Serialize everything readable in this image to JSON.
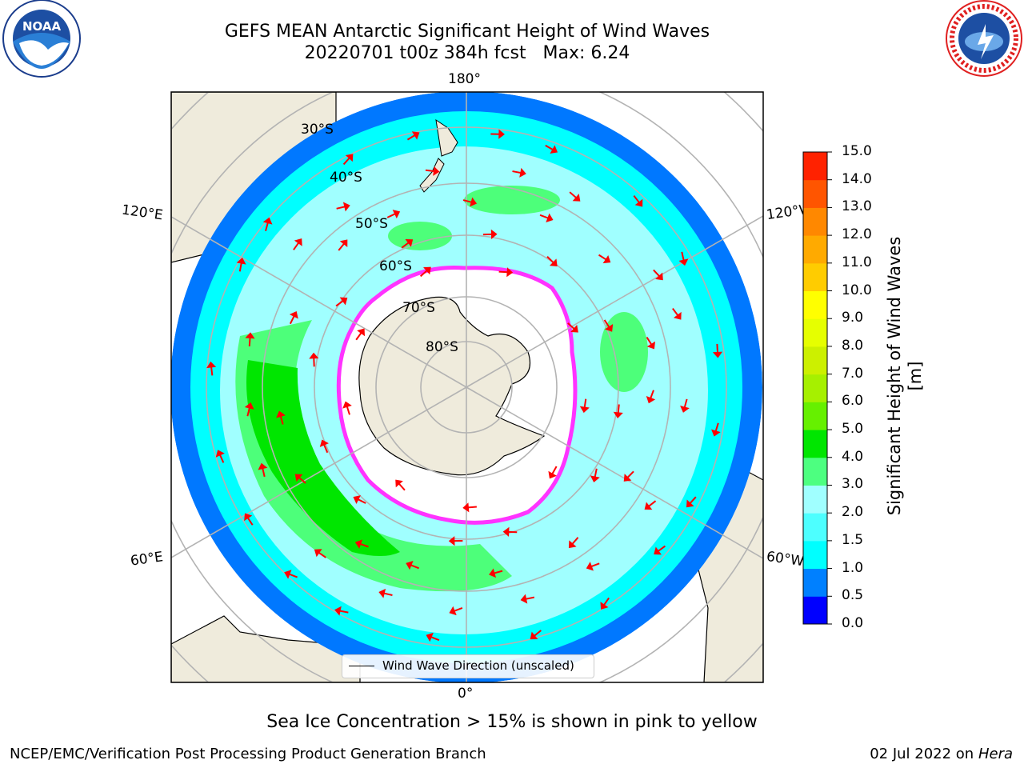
{
  "title": {
    "line1": "GEFS MEAN Antarctic Significant Height of Wind Waves",
    "line2": "20220701 t00z 384h fcst   Max: 6.24"
  },
  "map": {
    "longitude_labels": {
      "top": "180°",
      "bottom": "0°",
      "left_upper": "120°E",
      "left_lower": "60°E",
      "right_upper": "120°W",
      "right_lower": "60°W"
    },
    "latitude_labels": [
      "30°S",
      "40°S",
      "50°S",
      "60°S",
      "70°S",
      "80°S"
    ],
    "legend_label": "Wind Wave Direction (unscaled)",
    "colors": {
      "land": "#efebdc",
      "ocean_low": "#0078ff",
      "ocean_mid": "#00ffff",
      "ocean_high": "#4dff7a",
      "ocean_peak": "#00e600",
      "ice": "#ffffff",
      "ice_edge": "#ff33ff",
      "arrows": "#ff0000",
      "graticule": "#b3b3b3"
    }
  },
  "colorbar": {
    "label": "Significant Height of Wind Waves [m]",
    "ticks": [
      "0.0",
      "0.5",
      "1.0",
      "1.5",
      "2.0",
      "3.0",
      "4.0",
      "5.0",
      "6.0",
      "7.0",
      "8.0",
      "9.0",
      "10.0",
      "11.0",
      "12.0",
      "13.0",
      "14.0",
      "15.0"
    ],
    "colors": [
      "#0000ff",
      "#0080ff",
      "#00ffff",
      "#4dffff",
      "#a0ffff",
      "#4dff80",
      "#00e600",
      "#66f000",
      "#a6f000",
      "#ccf000",
      "#e6ff00",
      "#ffff00",
      "#ffcc00",
      "#ffaa00",
      "#ff8800",
      "#ff5500",
      "#ff2200"
    ]
  },
  "caption": "Sea Ice Concentration > 15% is shown in pink to yellow",
  "footer": {
    "left": "NCEP/EMC/Verification Post Processing Product Generation Branch",
    "right_date": "02 Jul 2022 on ",
    "right_host": "Hera"
  },
  "logos": {
    "noaa_text": "NOAA",
    "nws_text": "NATIONAL WEATHER SERVICE"
  }
}
